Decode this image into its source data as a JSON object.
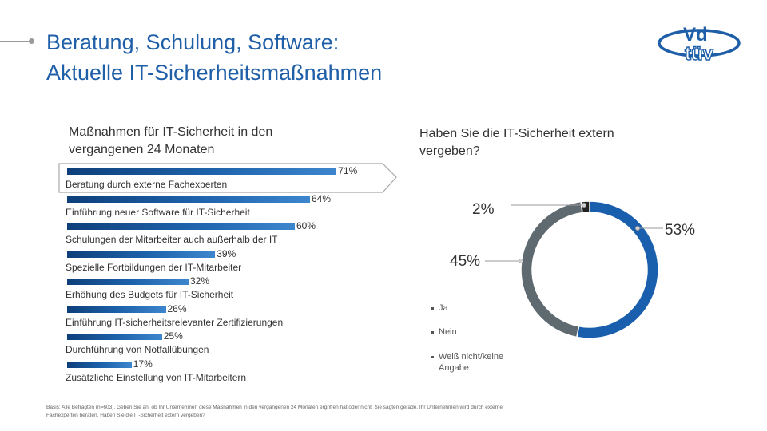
{
  "title": {
    "line1": "Beratung, Schulung, Software:",
    "line2": "Aktuelle IT-Sicherheitsmaßnahmen"
  },
  "logo": {
    "text_top": "Vd",
    "text_bottom": "tüv"
  },
  "colors": {
    "accent": "#1f5fa8",
    "bar_dark": "#0e3f7a",
    "ja": "#1a5fae",
    "nein": "#5f6a70",
    "weiss_nicht": "#222222"
  },
  "chart_data": [
    {
      "type": "bar",
      "title": "Maßnahmen für IT-Sicherheit in den vergangenen 24 Monaten",
      "categories": [
        "Beratung durch externe Fachexperten",
        "Einführung neuer Software für IT-Sicherheit",
        "Schulungen der Mitarbeiter auch außerhalb der IT",
        "Spezielle Fortbildungen der IT-Mitarbeiter",
        "Erhöhung des Budgets für IT-Sicherheit",
        "Einführung IT-sicherheitsrelevanter Zertifizierungen",
        "Durchführung von Notfallübungen",
        "Zusätzliche Einstellung von IT-Mitarbeitern"
      ],
      "category_labels": [
        "Beratung durch externe Fachexperten",
        "Einführung neuer Software für IT-Sicherheit",
        "Schulungen der Mitarbeiter auch außerhalb der IT",
        "Spezielle Fortbildungen der IT-Mitarbeiter",
        "Erhöhung des Budgets für IT-Sicherheit",
        "Einführung IT-sicherheitsrelevanter Zertifizierungen",
        "Durchführung von Notfallübungen",
        "Zusätzliche Einstellung von IT-Mitarbeitern"
      ],
      "values": [
        71,
        64,
        60,
        39,
        32,
        26,
        25,
        17
      ],
      "value_labels": [
        "71%",
        "64%",
        "60%",
        "39%",
        "32%",
        "26%",
        "25%",
        "17%"
      ],
      "unit": "%",
      "highlighted_category": "Beratung durch externe Fachexperten"
    },
    {
      "type": "pie",
      "variant": "donut",
      "title": "Haben Sie die IT-Sicherheit extern vergeben?",
      "slices": [
        {
          "name": "Ja",
          "value": 53,
          "label": "53%",
          "color": "#1a5fae"
        },
        {
          "name": "Nein",
          "value": 45,
          "label": "45%",
          "color": "#5f6a70"
        },
        {
          "name": "Weiß nicht/keine Angabe",
          "value": 2,
          "label": "2%",
          "color": "#222222"
        }
      ],
      "legend": [
        "Ja",
        "Nein",
        "Weiß nicht/keine Angabe"
      ]
    }
  ],
  "legend": {
    "ja": "Ja",
    "nein": "Nein",
    "weiss_line1": "Weiß nicht/keine",
    "weiss_line2": "Angabe"
  },
  "footnote": {
    "line1": "Basis: Alle Befragten (n=603). Geben Sie an, ob Ihr Unternehmen diese Maßnahmen in den vergangenen 24 Monaten ergriffen hat oder nicht. Sie sagten gerade, Ihr Unternehmen wird durch externe",
    "line2": "Fachexperten beraten. Haben Sie die IT-Sicherheit extern vergeben?"
  }
}
